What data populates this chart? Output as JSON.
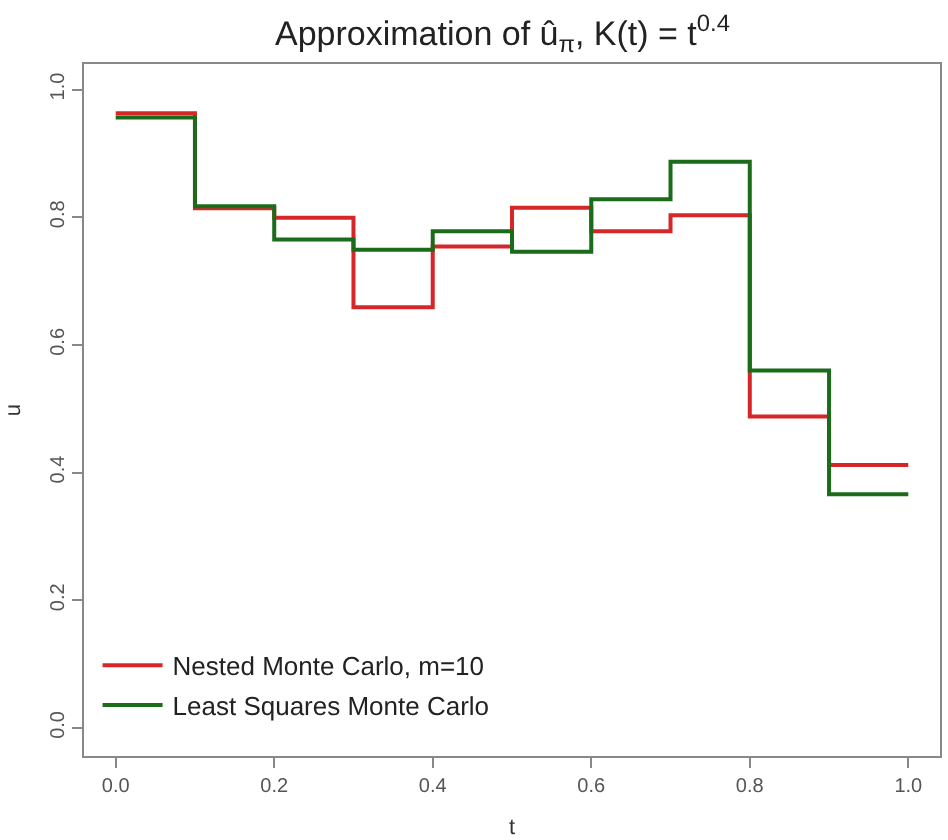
{
  "chart_data": {
    "type": "step",
    "title": "Approximation of û$_{π}$, K(t) = t$^{0.4}$",
    "xlabel": "t",
    "ylabel": "u",
    "x": [
      0,
      0.1,
      0.2,
      0.3,
      0.4,
      0.5,
      0.6,
      0.7,
      0.8,
      0.9,
      1.0
    ],
    "series": [
      {
        "name": "Nested Monte Carlo, m=10",
        "color": "#d62728",
        "values": [
          0.963,
          0.814,
          0.799,
          0.659,
          0.754,
          0.815,
          0.778,
          0.803,
          0.488,
          0.412,
          0.412
        ]
      },
      {
        "name": "Least Squares Monte Carlo",
        "color": "#1a6b1a",
        "values": [
          0.956,
          0.817,
          0.765,
          0.749,
          0.778,
          0.746,
          0.828,
          0.887,
          0.56,
          0.366,
          0.366
        ]
      }
    ],
    "xlim": [
      -0.04,
      1.04
    ],
    "ylim": [
      -0.044,
      1.04
    ],
    "xticks": [
      {
        "value": 0,
        "label": "0.0"
      },
      0.2,
      0.4,
      0.6,
      0.8,
      {
        "value": 1,
        "label": "1.0"
      }
    ],
    "yticks": [
      {
        "value": 0,
        "label": "0.0"
      },
      0.2,
      0.4,
      0.6,
      0.8,
      {
        "value": 1,
        "label": "1.0"
      }
    ],
    "grid": false,
    "legend": "bottom left",
    "line_style": "solid",
    "marker": "none"
  }
}
